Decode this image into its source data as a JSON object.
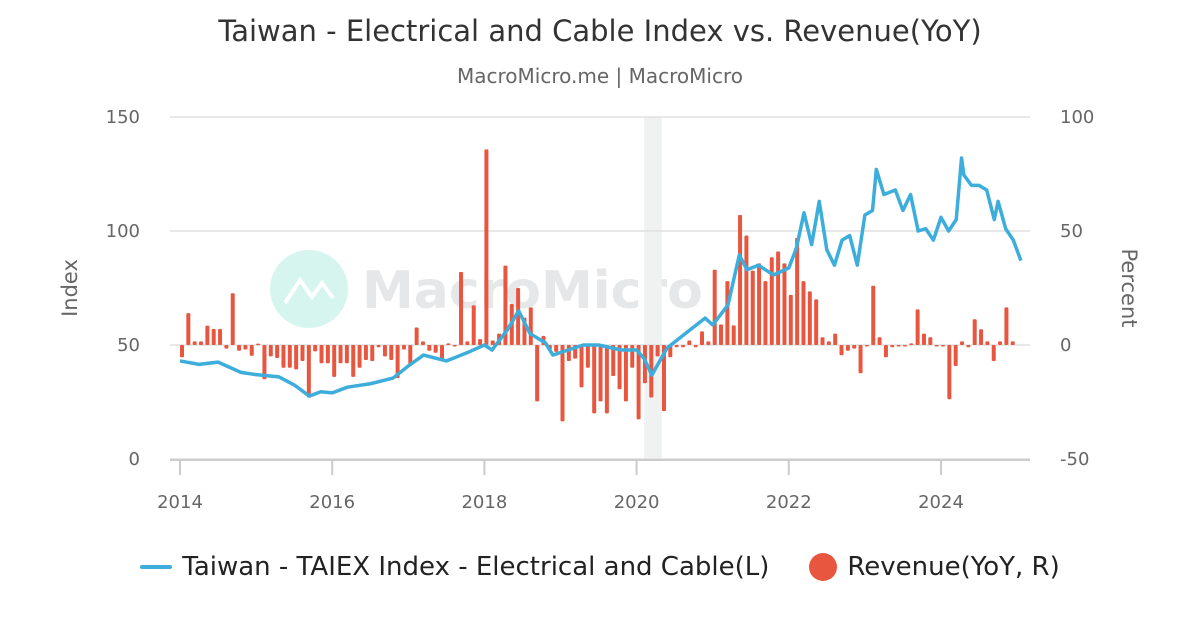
{
  "chart_data": {
    "type": "bar+line",
    "title": "Taiwan - Electrical and Cable Index vs. Revenue(YoY)",
    "subtitle": "MacroMicro.me | MacroMicro",
    "watermark": "MacroMicro",
    "left_axis": {
      "label": "Index",
      "range": [
        0,
        150
      ],
      "ticks": [
        "0",
        "50",
        "100",
        "150"
      ]
    },
    "right_axis": {
      "label": "Percent",
      "range": [
        -50,
        100
      ],
      "ticks": [
        "-50",
        "0",
        "50",
        "100"
      ]
    },
    "x_axis": {
      "range": [
        2014,
        2025.1
      ],
      "ticks": [
        "2014",
        "2016",
        "2018",
        "2020",
        "2022",
        "2024"
      ]
    },
    "grid": true,
    "legend_placement": "bottom",
    "recession_shading": [
      [
        2020.1,
        2020.33
      ]
    ],
    "series": [
      {
        "name": "Taiwan - TAIEX Index - Electrical and Cable(L)",
        "type": "line",
        "axis": "left",
        "color": "#3DADDB",
        "x": [
          2014.0,
          2014.25,
          2014.5,
          2014.8,
          2015.0,
          2015.3,
          2015.5,
          2015.7,
          2015.85,
          2016.0,
          2016.2,
          2016.5,
          2016.8,
          2017.0,
          2017.2,
          2017.5,
          2017.8,
          2018.0,
          2018.1,
          2018.3,
          2018.45,
          2018.6,
          2018.8,
          2018.9,
          2019.1,
          2019.3,
          2019.5,
          2019.8,
          2020.0,
          2020.1,
          2020.2,
          2020.4,
          2020.7,
          2020.9,
          2021.0,
          2021.2,
          2021.35,
          2021.45,
          2021.6,
          2021.8,
          2022.0,
          2022.1,
          2022.2,
          2022.3,
          2022.4,
          2022.5,
          2022.6,
          2022.7,
          2022.8,
          2022.9,
          2023.0,
          2023.1,
          2023.15,
          2023.25,
          2023.4,
          2023.5,
          2023.6,
          2023.7,
          2023.8,
          2023.9,
          2024.0,
          2024.1,
          2024.2,
          2024.27,
          2024.3,
          2024.4,
          2024.5,
          2024.6,
          2024.7,
          2024.75,
          2024.85,
          2024.95,
          2025.05
        ],
        "y": [
          43,
          41.5,
          42.5,
          38,
          37,
          36,
          32.5,
          27.6,
          29.5,
          29,
          31.5,
          33,
          35.5,
          40.8,
          45.6,
          43,
          47,
          50,
          47.8,
          56.6,
          65,
          55,
          51,
          45.6,
          47.8,
          50,
          50,
          47.8,
          47.8,
          44,
          36.8,
          48.7,
          56.6,
          61.8,
          58.8,
          67.5,
          89.5,
          83,
          85,
          80.7,
          83.8,
          92.5,
          108,
          94,
          113,
          91.7,
          85,
          96,
          98,
          85,
          107,
          109,
          127,
          116,
          118,
          109,
          116,
          100,
          101,
          96,
          106,
          100,
          105,
          132,
          124.6,
          120,
          120,
          118,
          105,
          113,
          101,
          96,
          87
        ]
      },
      {
        "name": "Revenue(YoY, R)",
        "type": "bar",
        "axis": "right",
        "color": "#E8563F",
        "start": "2014-01",
        "frequency": "monthly",
        "values": [
          -5.4,
          14,
          1.6,
          1.6,
          8.5,
          7,
          7,
          -1.6,
          22.7,
          -2.5,
          -2,
          -4.7,
          0.6,
          -15,
          -5,
          -5.7,
          -10,
          -10,
          -10.7,
          -7,
          -23,
          -2.8,
          -8,
          -8,
          -14,
          -8,
          -8,
          -14,
          -10,
          -6.6,
          -7,
          -1,
          -5,
          -6.6,
          -14.5,
          -2,
          -9,
          7.7,
          1.6,
          -2.5,
          -3.4,
          -6.3,
          0.7,
          0,
          32,
          1.6,
          17.4,
          2.6,
          85.8,
          2,
          5,
          34.8,
          18,
          25,
          12,
          16.5,
          -24.7,
          4,
          -2,
          -3,
          -33.5,
          -7,
          -6,
          -18.6,
          -10,
          -30,
          -24.7,
          -30,
          -13.6,
          -19.4,
          -24.7,
          -10,
          -32.6,
          -16.8,
          -23,
          -5,
          -29,
          -5.4,
          -1,
          -1,
          2,
          -1,
          6,
          1.6,
          33,
          9,
          28,
          8.6,
          57,
          48,
          32.6,
          35.8,
          28,
          38.5,
          41,
          35.8,
          22,
          47,
          28,
          23.5,
          20,
          3.4,
          1.6,
          5,
          -4.5,
          -2.5,
          -1.6,
          -12.4,
          0,
          26,
          3.4,
          -5.4,
          -1,
          0,
          0,
          0.7,
          15.6,
          5,
          3.4,
          0,
          0,
          -23.8,
          -9.2,
          1.6,
          -1,
          11.3,
          6.9,
          1.6,
          -7,
          1.6,
          16.5,
          1.6
        ]
      }
    ]
  }
}
